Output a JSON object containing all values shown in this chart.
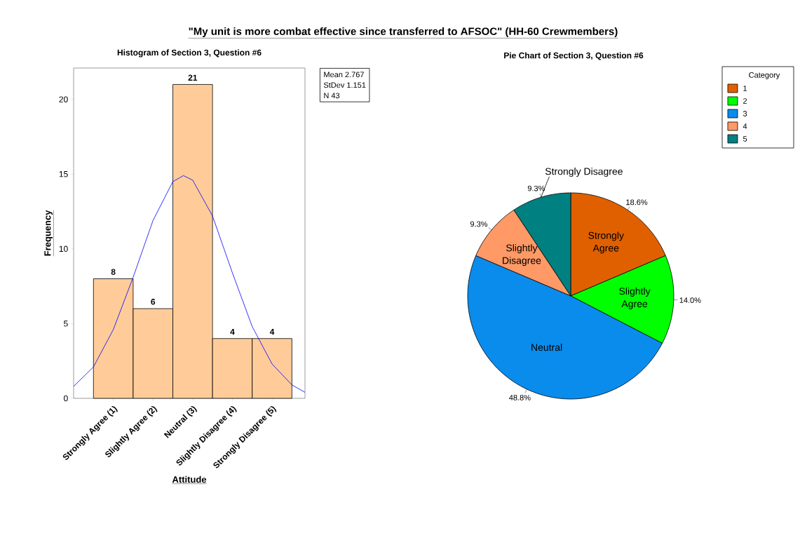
{
  "chart_data": [
    {
      "type": "histogram",
      "title": "\"My unit is more combat effective since transferred to AFSOC\" (HH-60 Crewmembers)",
      "subtitle": "Histogram of Section 3, Question #6",
      "xlabel": "Attitude",
      "ylabel": "Frequency",
      "bins": [
        0.5,
        1.5,
        2.5,
        3.5,
        4.5,
        5.5
      ],
      "series": [
        {
          "type": "histogram",
          "color": "#ffcc99",
          "values": [
            8,
            6,
            21,
            4,
            4
          ],
          "value_labels": [
            "8",
            "6",
            "21",
            "4",
            "4"
          ]
        },
        {
          "type": "line",
          "color": "#0000ff",
          "x": [
            0,
            0.5,
            1,
            1.5,
            2,
            2.5,
            2.767,
            3,
            3.5,
            4,
            4.5,
            5,
            5.5,
            5.83
          ],
          "values": [
            0.8,
            2.1,
            4.6,
            8.1,
            11.9,
            14.5,
            14.9,
            14.6,
            12.2,
            8.4,
            4.8,
            2.3,
            0.9,
            0.4
          ]
        }
      ],
      "xlim": [
        0,
        5.83
      ],
      "ylim": [
        0,
        22.1
      ],
      "xticks": [
        {
          "value": 1,
          "label": "Strongly Agree (1)"
        },
        {
          "value": 2,
          "label": "Slightly Agree (2)"
        },
        {
          "value": 3,
          "label": "Neutral (3)"
        },
        {
          "value": 4,
          "label": "Slightly Disagree (4)"
        },
        {
          "value": 5,
          "label": "Strongly Disagree (5)"
        }
      ],
      "yticks": [
        0,
        5,
        10,
        15,
        20
      ],
      "annotations": [
        "Mean 2.767",
        "StDev 1.151",
        "N 43"
      ]
    },
    {
      "type": "pie",
      "title": "Pie Chart of Section 3, Question #6",
      "legend_title": "Category",
      "legend": "top right",
      "categories": [
        "1",
        "2",
        "3",
        "4",
        "5"
      ],
      "values": [
        18.6,
        14.0,
        48.8,
        9.3,
        9.3
      ],
      "colors": [
        "#e06000",
        "#00ff00",
        "#0a8ced",
        "#ff9966",
        "#008080"
      ],
      "value_labels": [
        "18.6%",
        "14.0%",
        "48.8%",
        "9.3%",
        "9.3%"
      ],
      "annotations": [
        "Strongly Agree",
        "Slightly Agree",
        "Neutral",
        "Slightly Disagree",
        "Strongly Disagree"
      ]
    }
  ]
}
